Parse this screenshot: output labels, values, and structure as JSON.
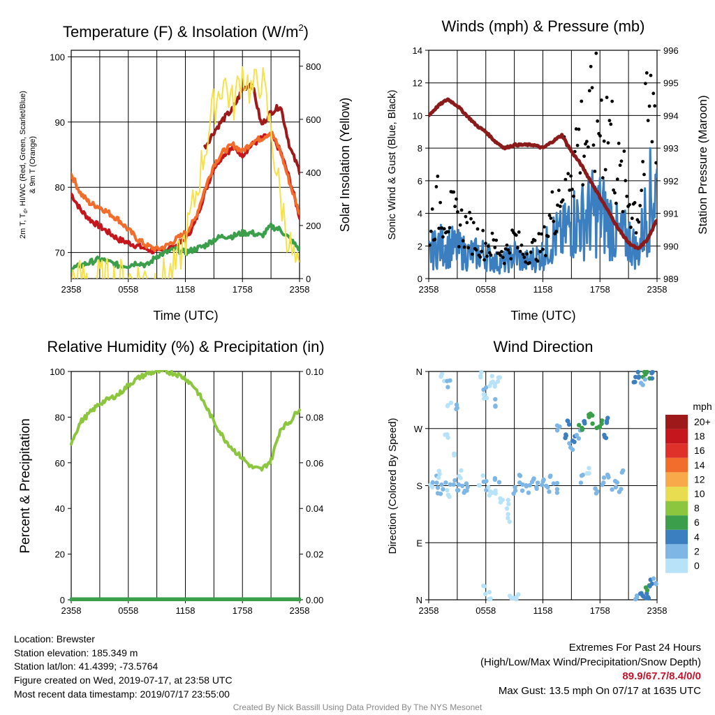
{
  "charts": {
    "temp": {
      "title": "Temperature (F) & Insolation (W/m",
      "title_sup": "2",
      "title_end": ")",
      "xlabel": "Time (UTC)",
      "ylabel_left_1": "2m T, T",
      "ylabel_left_sub": "d",
      "ylabel_left_2": ", HI/WC (Red, Green, Scarlet/Blue)",
      "ylabel_left_3": "& 9m T (Orange)",
      "ylabel_right": "Solar Insolation (Yellow)",
      "xticks": [
        "2358",
        "0558",
        "1158",
        "1758",
        "2358"
      ],
      "yticks_left": [
        "70",
        "80",
        "90",
        "100"
      ],
      "yticks_right": [
        "0",
        "200",
        "400",
        "600",
        "800"
      ]
    },
    "wind": {
      "title": "Winds (mph) & Pressure (mb)",
      "xlabel": "Time (UTC)",
      "ylabel_left": "Sonic Wind & Gust (Blue, Black)",
      "ylabel_right": "Station Pressure (Maroon)",
      "xticks": [
        "2358",
        "0558",
        "1158",
        "1758",
        "2358"
      ],
      "yticks_left": [
        "0",
        "2",
        "4",
        "6",
        "8",
        "10",
        "12",
        "14"
      ],
      "yticks_right": [
        "989",
        "990",
        "991",
        "992",
        "993",
        "994",
        "995",
        "996"
      ]
    },
    "rh": {
      "title": "Relative Humidity (%) & Precipitation (in)",
      "ylabel_left": "Percent & Precipitation",
      "xticks": [
        "2358",
        "0558",
        "1158",
        "1758",
        "2358"
      ],
      "yticks_left": [
        "0",
        "20",
        "40",
        "60",
        "80",
        "100"
      ],
      "yticks_right": [
        "0.00",
        "0.02",
        "0.04",
        "0.06",
        "0.08",
        "0.10"
      ]
    },
    "dir": {
      "title": "Wind Direction",
      "ylabel_left": "Direction (Colored By Speed)",
      "xticks": [
        "2358",
        "0558",
        "1158",
        "1758",
        "2358"
      ],
      "yticks_left": [
        "N",
        "E",
        "S",
        "W",
        "N"
      ],
      "legend_title": "mph",
      "legend_labels": [
        "20+",
        "18",
        "16",
        "14",
        "12",
        "10",
        "8",
        "6",
        "4",
        "2",
        "0"
      ],
      "legend_colors": [
        "#9e1a1a",
        "#c4161c",
        "#e0302a",
        "#f26c2b",
        "#f8a94a",
        "#e8dd50",
        "#8cc63f",
        "#3a9e4b",
        "#3c7fc0",
        "#7eb7e5",
        "#b8e2f8"
      ]
    }
  },
  "chart_data": [
    {
      "id": "temp",
      "type": "line",
      "x": [
        0,
        1,
        2,
        3,
        4,
        5,
        6,
        7,
        8,
        9,
        10,
        11,
        12,
        13,
        14,
        15,
        16,
        17,
        18,
        19,
        20,
        21,
        22,
        23,
        24
      ],
      "x_range": [
        0,
        24
      ],
      "ylim": [
        66,
        101
      ],
      "y2lim": [
        0,
        860
      ],
      "series": [
        {
          "name": "2m T",
          "color": "#c4161c",
          "axis": "left",
          "values": [
            79.0,
            76.5,
            75.0,
            74.0,
            73.0,
            72.0,
            71.5,
            71.0,
            70.5,
            70.0,
            70.5,
            71.0,
            72.0,
            74.5,
            79.0,
            83.0,
            85.0,
            86.0,
            85.0,
            86.5,
            87.5,
            88.0,
            85.5,
            81.0,
            75.5
          ]
        },
        {
          "name": "9m T",
          "color": "#f26c2b",
          "axis": "left",
          "values": [
            82.0,
            79.0,
            77.5,
            77.0,
            76.0,
            75.0,
            73.5,
            72.0,
            71.0,
            70.5,
            71.0,
            72.0,
            73.0,
            75.0,
            79.5,
            83.5,
            85.5,
            86.5,
            85.5,
            87.0,
            87.5,
            88.5,
            85.5,
            80.5,
            76.0
          ]
        },
        {
          "name": "HI",
          "color": "#9e1a1a",
          "axis": "left",
          "values": [
            null,
            null,
            null,
            null,
            null,
            null,
            null,
            null,
            null,
            null,
            null,
            null,
            null,
            null,
            86.0,
            88.5,
            90.5,
            92.0,
            95.0,
            96.0,
            89.5,
            91.5,
            92.5,
            86.0,
            82.5
          ]
        },
        {
          "name": "Td",
          "color": "#3a9e4b",
          "axis": "left",
          "values": [
            67.5,
            68.0,
            68.5,
            69.0,
            68.5,
            68.0,
            68.0,
            68.5,
            68.0,
            69.5,
            70.0,
            70.5,
            70.0,
            70.5,
            71.0,
            72.0,
            72.5,
            72.5,
            73.0,
            73.0,
            72.5,
            74.0,
            73.5,
            72.0,
            70.5
          ]
        },
        {
          "name": "Insolation",
          "color": "#f5e14a",
          "axis": "right",
          "values": [
            0,
            0,
            0,
            0,
            0,
            0,
            0,
            0,
            0,
            0,
            5,
            40,
            150,
            300,
            480,
            650,
            750,
            650,
            780,
            700,
            760,
            550,
            300,
            120,
            0
          ]
        }
      ]
    },
    {
      "id": "wind",
      "type": "line",
      "x": [
        0,
        1,
        2,
        3,
        4,
        5,
        6,
        7,
        8,
        9,
        10,
        11,
        12,
        13,
        14,
        15,
        16,
        17,
        18,
        19,
        20,
        21,
        22,
        23,
        24
      ],
      "x_range": [
        0,
        24
      ],
      "ylim": [
        0,
        14
      ],
      "y2lim": [
        989,
        996
      ],
      "series": [
        {
          "name": "Sonic Wind",
          "color": "#3c7fc0",
          "axis": "left",
          "values": [
            1.5,
            2.0,
            2.0,
            1.8,
            1.5,
            1.5,
            1.5,
            1.0,
            1.0,
            1.5,
            1.0,
            1.2,
            1.5,
            2.5,
            2.5,
            3.5,
            3.5,
            4.0,
            4.0,
            3.5,
            2.5,
            2.5,
            1.5,
            4.5,
            5.5
          ]
        },
        {
          "name": "Gust",
          "color": "#000000",
          "axis": "left",
          "values": [
            3.0,
            4.5,
            4.0,
            3.5,
            3.0,
            2.5,
            2.0,
            2.0,
            1.5,
            2.5,
            1.5,
            1.8,
            2.0,
            4.0,
            6.0,
            7.5,
            8.5,
            9.0,
            10.0,
            9.5,
            6.0,
            5.0,
            4.0,
            9.5,
            11.0
          ]
        },
        {
          "name": "Station Pressure",
          "color": "#8b1a1a",
          "axis": "right",
          "values": [
            994.0,
            994.3,
            994.5,
            994.3,
            994.0,
            993.7,
            993.5,
            993.2,
            993.0,
            993.1,
            993.1,
            993.1,
            993.0,
            993.2,
            993.4,
            992.9,
            992.5,
            992.0,
            991.5,
            991.0,
            990.5,
            990.1,
            989.9,
            990.2,
            990.8
          ]
        }
      ]
    },
    {
      "id": "rh",
      "type": "line",
      "x": [
        0,
        1,
        2,
        3,
        4,
        5,
        6,
        7,
        8,
        9,
        10,
        11,
        12,
        13,
        14,
        15,
        16,
        17,
        18,
        19,
        20,
        21,
        22,
        23,
        24
      ],
      "x_range": [
        0,
        24
      ],
      "ylim": [
        0,
        100
      ],
      "y2lim": [
        0,
        0.1
      ],
      "series": [
        {
          "name": "RH",
          "color": "#8cc63f",
          "axis": "left",
          "values": [
            69,
            78,
            82,
            86,
            88,
            90,
            94,
            97,
            99,
            100,
            100,
            99,
            97,
            93,
            86,
            78,
            71,
            66,
            62,
            58,
            57,
            61,
            75,
            78,
            84
          ]
        },
        {
          "name": "Precipitation",
          "color": "#3a9e4b",
          "axis": "right",
          "values": [
            0,
            0,
            0,
            0,
            0,
            0,
            0,
            0,
            0,
            0,
            0,
            0,
            0,
            0,
            0,
            0,
            0,
            0,
            0,
            0,
            0,
            0,
            0,
            0,
            0
          ]
        }
      ]
    },
    {
      "id": "dir",
      "type": "scatter",
      "x_range": [
        0,
        24
      ],
      "ylim": [
        0,
        360
      ],
      "points": [
        [
          0.3,
          185,
          1
        ],
        [
          0.6,
          190,
          2
        ],
        [
          1.0,
          175,
          3
        ],
        [
          1.2,
          200,
          1
        ],
        [
          1.6,
          180,
          2
        ],
        [
          2.0,
          170,
          1
        ],
        [
          2.5,
          185,
          3
        ],
        [
          3.0,
          175,
          2
        ],
        [
          3.3,
          200,
          1
        ],
        [
          3.7,
          175,
          3
        ],
        [
          4.0,
          178,
          2
        ],
        [
          1.5,
          350,
          1
        ],
        [
          2.0,
          340,
          2
        ],
        [
          2.2,
          310,
          1
        ],
        [
          2.8,
          300,
          2
        ],
        [
          1.8,
          260,
          1
        ],
        [
          2.6,
          230,
          1
        ],
        [
          5.5,
          355,
          1
        ],
        [
          5.8,
          330,
          2
        ],
        [
          6.0,
          320,
          1
        ],
        [
          6.5,
          345,
          1
        ],
        [
          6.8,
          335,
          1
        ],
        [
          7.0,
          310,
          2
        ],
        [
          7.5,
          350,
          1
        ],
        [
          5.5,
          188,
          1
        ],
        [
          5.9,
          180,
          2
        ],
        [
          6.3,
          170,
          1
        ],
        [
          6.8,
          175,
          1
        ],
        [
          7.2,
          185,
          2
        ],
        [
          7.7,
          160,
          1
        ],
        [
          8.2,
          150,
          1
        ],
        [
          8.5,
          130,
          1
        ],
        [
          9.0,
          170,
          2
        ],
        [
          9.5,
          192,
          2
        ],
        [
          10.0,
          180,
          3
        ],
        [
          10.5,
          175,
          2
        ],
        [
          11.0,
          185,
          3
        ],
        [
          11.5,
          178,
          2
        ],
        [
          12.0,
          182,
          3
        ],
        [
          12.5,
          175,
          2
        ],
        [
          13.0,
          188,
          2
        ],
        [
          13.5,
          176,
          3
        ],
        [
          13.6,
          270,
          3
        ],
        [
          14.2,
          260,
          4
        ],
        [
          14.7,
          275,
          5
        ],
        [
          15.0,
          240,
          3
        ],
        [
          15.3,
          250,
          4
        ],
        [
          15.7,
          262,
          3
        ],
        [
          16.0,
          272,
          6
        ],
        [
          16.5,
          280,
          5
        ],
        [
          16.8,
          290,
          6
        ],
        [
          17.3,
          285,
          7
        ],
        [
          17.8,
          270,
          6
        ],
        [
          18.2,
          275,
          7
        ],
        [
          18.5,
          260,
          4
        ],
        [
          18.9,
          280,
          5
        ],
        [
          16.2,
          190,
          2
        ],
        [
          16.8,
          200,
          1
        ],
        [
          17.5,
          175,
          2
        ],
        [
          18.2,
          185,
          3
        ],
        [
          18.8,
          195,
          2
        ],
        [
          19.5,
          180,
          2
        ],
        [
          20.0,
          178,
          3
        ],
        [
          20.3,
          200,
          2
        ],
        [
          21.8,
          350,
          4
        ],
        [
          22.2,
          355,
          5
        ],
        [
          22.6,
          352,
          6
        ],
        [
          23.0,
          355,
          7
        ],
        [
          23.5,
          356,
          4
        ],
        [
          22.5,
          345,
          3
        ],
        [
          21.9,
          2,
          3
        ],
        [
          22.3,
          5,
          4
        ],
        [
          22.7,
          10,
          5
        ],
        [
          23.0,
          15,
          6
        ],
        [
          23.4,
          25,
          4
        ],
        [
          23.7,
          30,
          3
        ],
        [
          23.2,
          8,
          5
        ],
        [
          5.9,
          15,
          1
        ],
        [
          6.3,
          5,
          1
        ],
        [
          8.7,
          3,
          1
        ],
        [
          9.2,
          2,
          1
        ]
      ],
      "color_by": "speed_mph",
      "legend": {
        "title": "mph",
        "bins": [
          20,
          18,
          16,
          14,
          12,
          10,
          8,
          6,
          4,
          2,
          0
        ]
      }
    }
  ],
  "info": {
    "location": "Location: Brewster",
    "elevation": "Station elevation: 185.349 m",
    "latlon": "Station lat/lon: 41.4399; -73.5764",
    "created": "Figure created on Wed, 2019-07-17, at 23:58 UTC",
    "recent": "Most recent data timestamp: 2019/07/17 23:55:00"
  },
  "extremes": {
    "title": "Extremes For Past 24 Hours",
    "subtitle": "(High/Low/Max Wind/Precipitation/Snow Depth)",
    "values": "89.9/67.7/8.4/0/0",
    "max_gust": "Max Gust: 13.5 mph On 07/17 at 1635 UTC"
  },
  "credit": "Created By Nick Bassill Using Data Provided By The NYS Mesonet"
}
